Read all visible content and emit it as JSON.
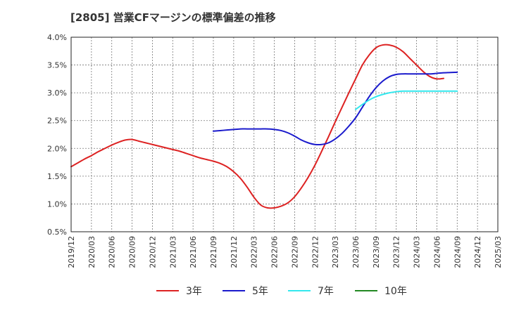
{
  "chart_data": {
    "type": "line",
    "title": "[2805]  営業CFマージンの標準偏差の推移",
    "xlabel": "",
    "ylabel": "",
    "x": [
      "2019/12",
      "2020/03",
      "2020/06",
      "2020/09",
      "2020/12",
      "2021/03",
      "2021/06",
      "2021/09",
      "2021/12",
      "2022/03",
      "2022/06",
      "2022/09",
      "2022/12",
      "2023/03",
      "2023/06",
      "2023/09",
      "2023/12",
      "2024/03",
      "2024/06",
      "2024/09",
      "2024/12",
      "2025/03"
    ],
    "ylim": [
      0.5,
      4.0
    ],
    "yticks": [
      "0.5%",
      "1.0%",
      "1.5%",
      "2.0%",
      "2.5%",
      "3.0%",
      "3.5%",
      "4.0%"
    ],
    "grid": true,
    "legend_position": "bottom",
    "series": [
      {
        "name": "3年",
        "color": "#dd2222",
        "points": [
          [
            "2019/12",
            1.67
          ],
          [
            "2020/01",
            1.74
          ],
          [
            "2020/02",
            1.81
          ],
          [
            "2020/03",
            1.87
          ],
          [
            "2020/04",
            1.94
          ],
          [
            "2020/05",
            2.0
          ],
          [
            "2020/06",
            2.06
          ],
          [
            "2020/07",
            2.11
          ],
          [
            "2020/08",
            2.15
          ],
          [
            "2020/09",
            2.16
          ],
          [
            "2020/10",
            2.13
          ],
          [
            "2020/11",
            2.1
          ],
          [
            "2020/12",
            2.07
          ],
          [
            "2021/01",
            2.04
          ],
          [
            "2021/02",
            2.01
          ],
          [
            "2021/03",
            1.98
          ],
          [
            "2021/04",
            1.95
          ],
          [
            "2021/05",
            1.91
          ],
          [
            "2021/06",
            1.87
          ],
          [
            "2021/07",
            1.83
          ],
          [
            "2021/08",
            1.8
          ],
          [
            "2021/09",
            1.77
          ],
          [
            "2021/10",
            1.73
          ],
          [
            "2021/11",
            1.67
          ],
          [
            "2021/12",
            1.58
          ],
          [
            "2022/01",
            1.46
          ],
          [
            "2022/02",
            1.3
          ],
          [
            "2022/03",
            1.12
          ],
          [
            "2022/04",
            0.98
          ],
          [
            "2022/05",
            0.93
          ],
          [
            "2022/06",
            0.93
          ],
          [
            "2022/07",
            0.96
          ],
          [
            "2022/08",
            1.02
          ],
          [
            "2022/09",
            1.13
          ],
          [
            "2022/10",
            1.29
          ],
          [
            "2022/11",
            1.48
          ],
          [
            "2022/12",
            1.7
          ],
          [
            "2023/01",
            1.95
          ],
          [
            "2023/02",
            2.21
          ],
          [
            "2023/03",
            2.48
          ],
          [
            "2023/04",
            2.74
          ],
          [
            "2023/05",
            3.0
          ],
          [
            "2023/06",
            3.25
          ],
          [
            "2023/07",
            3.5
          ],
          [
            "2023/08",
            3.68
          ],
          [
            "2023/09",
            3.81
          ],
          [
            "2023/10",
            3.86
          ],
          [
            "2023/11",
            3.86
          ],
          [
            "2023/12",
            3.82
          ],
          [
            "2024/01",
            3.74
          ],
          [
            "2024/02",
            3.62
          ],
          [
            "2024/03",
            3.5
          ],
          [
            "2024/04",
            3.38
          ],
          [
            "2024/05",
            3.29
          ],
          [
            "2024/06",
            3.25
          ],
          [
            "2024/07",
            3.26
          ]
        ]
      },
      {
        "name": "5年",
        "color": "#1a1acc",
        "points": [
          [
            "2021/09",
            2.31
          ],
          [
            "2021/10",
            2.32
          ],
          [
            "2021/11",
            2.33
          ],
          [
            "2021/12",
            2.34
          ],
          [
            "2022/01",
            2.35
          ],
          [
            "2022/02",
            2.35
          ],
          [
            "2022/03",
            2.35
          ],
          [
            "2022/04",
            2.35
          ],
          [
            "2022/05",
            2.35
          ],
          [
            "2022/06",
            2.34
          ],
          [
            "2022/07",
            2.32
          ],
          [
            "2022/08",
            2.28
          ],
          [
            "2022/09",
            2.22
          ],
          [
            "2022/10",
            2.15
          ],
          [
            "2022/11",
            2.1
          ],
          [
            "2022/12",
            2.07
          ],
          [
            "2023/01",
            2.07
          ],
          [
            "2023/02",
            2.1
          ],
          [
            "2023/03",
            2.17
          ],
          [
            "2023/04",
            2.27
          ],
          [
            "2023/05",
            2.4
          ],
          [
            "2023/06",
            2.55
          ],
          [
            "2023/07",
            2.74
          ],
          [
            "2023/08",
            2.93
          ],
          [
            "2023/09",
            3.09
          ],
          [
            "2023/10",
            3.21
          ],
          [
            "2023/11",
            3.29
          ],
          [
            "2023/12",
            3.33
          ],
          [
            "2024/01",
            3.34
          ],
          [
            "2024/02",
            3.34
          ],
          [
            "2024/03",
            3.34
          ],
          [
            "2024/04",
            3.34
          ],
          [
            "2024/05",
            3.34
          ],
          [
            "2024/06",
            3.35
          ],
          [
            "2024/07",
            3.36
          ],
          [
            "2024/09",
            3.37
          ]
        ]
      },
      {
        "name": "7年",
        "color": "#33e8ee",
        "points": [
          [
            "2023/06",
            2.7
          ],
          [
            "2023/07",
            2.79
          ],
          [
            "2023/08",
            2.87
          ],
          [
            "2023/09",
            2.93
          ],
          [
            "2023/10",
            2.97
          ],
          [
            "2023/11",
            3.0
          ],
          [
            "2023/12",
            3.02
          ],
          [
            "2024/01",
            3.03
          ],
          [
            "2024/02",
            3.03
          ],
          [
            "2024/03",
            3.03
          ],
          [
            "2024/04",
            3.03
          ],
          [
            "2024/05",
            3.03
          ],
          [
            "2024/06",
            3.03
          ],
          [
            "2024/07",
            3.03
          ],
          [
            "2024/09",
            3.03
          ]
        ]
      },
      {
        "name": "10年",
        "color": "#228822",
        "points": []
      }
    ]
  }
}
